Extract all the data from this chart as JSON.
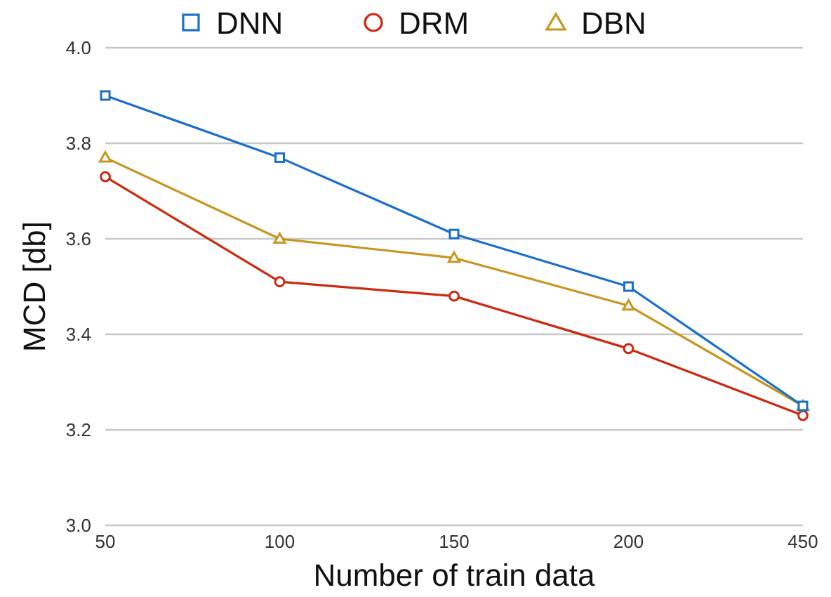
{
  "chart_data": {
    "type": "line",
    "xlabel": "Number of train data",
    "ylabel": "MCD [db]",
    "categories": [
      "50",
      "100",
      "150",
      "200",
      "450"
    ],
    "series": [
      {
        "name": "DNN",
        "color": "#1a6fc9",
        "marker": "square",
        "values": [
          3.9,
          3.77,
          3.61,
          3.5,
          3.25
        ]
      },
      {
        "name": "DRM",
        "color": "#cc2a10",
        "marker": "circle",
        "values": [
          3.73,
          3.51,
          3.48,
          3.37,
          3.23
        ]
      },
      {
        "name": "DBN",
        "color": "#c8961e",
        "marker": "triangle",
        "values": [
          3.77,
          3.6,
          3.56,
          3.46,
          3.25
        ]
      }
    ],
    "ylim": [
      3.0,
      4.0
    ],
    "yticks": [
      {
        "value": 3.0,
        "label": "3.0"
      },
      {
        "value": 3.2,
        "label": "3.2"
      },
      {
        "value": 3.4,
        "label": "3.4"
      },
      {
        "value": 3.6,
        "label": "3.6"
      },
      {
        "value": 3.8,
        "label": "3.8"
      },
      {
        "value": 4.0,
        "label": "4.0"
      }
    ],
    "grid": "y",
    "legend": "top",
    "line_style": "solid"
  }
}
